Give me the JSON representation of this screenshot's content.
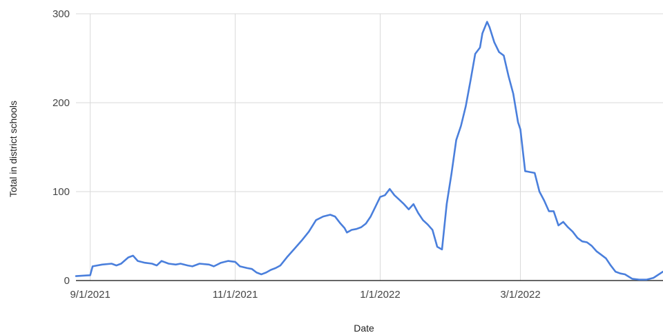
{
  "chart_data": {
    "type": "line",
    "title": "",
    "xlabel": "Date",
    "ylabel": "Total in district schools",
    "xlim": [
      "2021-08-26",
      "2022-04-30"
    ],
    "ylim": [
      0,
      300
    ],
    "grid": true,
    "legend": "none",
    "x_ticks": [
      {
        "date": "2021-09-01",
        "label": "9/1/2021"
      },
      {
        "date": "2021-11-01",
        "label": "11/1/2021"
      },
      {
        "date": "2022-01-01",
        "label": "1/1/2022"
      },
      {
        "date": "2022-03-01",
        "label": "3/1/2022"
      }
    ],
    "y_ticks": [
      0,
      100,
      200,
      300
    ],
    "series": [
      {
        "name": "",
        "color": "#4a7fdc",
        "points": [
          [
            "2021-08-26",
            5
          ],
          [
            "2021-09-01",
            6
          ],
          [
            "2021-09-02",
            16
          ],
          [
            "2021-09-06",
            18
          ],
          [
            "2021-09-10",
            19
          ],
          [
            "2021-09-12",
            17
          ],
          [
            "2021-09-14",
            19
          ],
          [
            "2021-09-17",
            26
          ],
          [
            "2021-09-19",
            28
          ],
          [
            "2021-09-21",
            22
          ],
          [
            "2021-09-24",
            20
          ],
          [
            "2021-09-27",
            19
          ],
          [
            "2021-09-29",
            17
          ],
          [
            "2021-10-01",
            22
          ],
          [
            "2021-10-04",
            19
          ],
          [
            "2021-10-07",
            18
          ],
          [
            "2021-10-09",
            19
          ],
          [
            "2021-10-12",
            17
          ],
          [
            "2021-10-14",
            16
          ],
          [
            "2021-10-17",
            19
          ],
          [
            "2021-10-21",
            18
          ],
          [
            "2021-10-23",
            16
          ],
          [
            "2021-10-26",
            20
          ],
          [
            "2021-10-29",
            22
          ],
          [
            "2021-11-01",
            21
          ],
          [
            "2021-11-03",
            16
          ],
          [
            "2021-11-06",
            14
          ],
          [
            "2021-11-08",
            13
          ],
          [
            "2021-11-10",
            9
          ],
          [
            "2021-11-12",
            7
          ],
          [
            "2021-11-14",
            9
          ],
          [
            "2021-11-16",
            12
          ],
          [
            "2021-11-18",
            14
          ],
          [
            "2021-11-20",
            17
          ],
          [
            "2021-11-23",
            27
          ],
          [
            "2021-11-26",
            36
          ],
          [
            "2021-11-29",
            45
          ],
          [
            "2021-12-02",
            55
          ],
          [
            "2021-12-05",
            68
          ],
          [
            "2021-12-08",
            72
          ],
          [
            "2021-12-11",
            74
          ],
          [
            "2021-12-13",
            72
          ],
          [
            "2021-12-15",
            65
          ],
          [
            "2021-12-17",
            59
          ],
          [
            "2021-12-18",
            54
          ],
          [
            "2021-12-20",
            57
          ],
          [
            "2021-12-22",
            58
          ],
          [
            "2021-12-24",
            60
          ],
          [
            "2021-12-26",
            64
          ],
          [
            "2021-12-28",
            72
          ],
          [
            "2021-12-30",
            83
          ],
          [
            "2022-01-01",
            94
          ],
          [
            "2022-01-03",
            96
          ],
          [
            "2022-01-05",
            103
          ],
          [
            "2022-01-07",
            96
          ],
          [
            "2022-01-09",
            91
          ],
          [
            "2022-01-11",
            86
          ],
          [
            "2022-01-13",
            80
          ],
          [
            "2022-01-15",
            86
          ],
          [
            "2022-01-17",
            76
          ],
          [
            "2022-01-19",
            68
          ],
          [
            "2022-01-21",
            63
          ],
          [
            "2022-01-23",
            57
          ],
          [
            "2022-01-25",
            38
          ],
          [
            "2022-01-27",
            35
          ],
          [
            "2022-01-29",
            86
          ],
          [
            "2022-01-31",
            120
          ],
          [
            "2022-02-02",
            158
          ],
          [
            "2022-02-04",
            174
          ],
          [
            "2022-02-06",
            196
          ],
          [
            "2022-02-08",
            225
          ],
          [
            "2022-02-10",
            255
          ],
          [
            "2022-02-12",
            262
          ],
          [
            "2022-02-13",
            278
          ],
          [
            "2022-02-15",
            291
          ],
          [
            "2022-02-16",
            285
          ],
          [
            "2022-02-18",
            268
          ],
          [
            "2022-02-20",
            257
          ],
          [
            "2022-02-22",
            253
          ],
          [
            "2022-02-24",
            230
          ],
          [
            "2022-02-26",
            210
          ],
          [
            "2022-02-28",
            178
          ],
          [
            "2022-03-01",
            170
          ],
          [
            "2022-03-03",
            123
          ],
          [
            "2022-03-05",
            122
          ],
          [
            "2022-03-07",
            121
          ],
          [
            "2022-03-09",
            100
          ],
          [
            "2022-03-11",
            90
          ],
          [
            "2022-03-13",
            78
          ],
          [
            "2022-03-15",
            78
          ],
          [
            "2022-03-17",
            62
          ],
          [
            "2022-03-19",
            66
          ],
          [
            "2022-03-21",
            60
          ],
          [
            "2022-03-23",
            55
          ],
          [
            "2022-03-25",
            48
          ],
          [
            "2022-03-27",
            44
          ],
          [
            "2022-03-29",
            43
          ],
          [
            "2022-03-31",
            39
          ],
          [
            "2022-04-02",
            33
          ],
          [
            "2022-04-04",
            29
          ],
          [
            "2022-04-06",
            25
          ],
          [
            "2022-04-08",
            17
          ],
          [
            "2022-04-10",
            10
          ],
          [
            "2022-04-12",
            8
          ],
          [
            "2022-04-14",
            7
          ],
          [
            "2022-04-17",
            2
          ],
          [
            "2022-04-20",
            1
          ],
          [
            "2022-04-23",
            1
          ],
          [
            "2022-04-26",
            3
          ],
          [
            "2022-04-30",
            10
          ]
        ]
      }
    ]
  }
}
